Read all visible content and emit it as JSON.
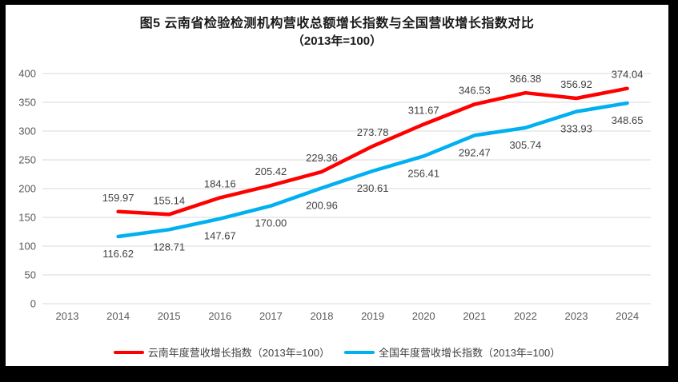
{
  "title": {
    "line1": "图5  云南省检验检测机构营收总额增长指数与全国营收增长指数对比",
    "line2": "（2013年=100）"
  },
  "colors": {
    "frame": "#000000",
    "canvas": "#ffffff",
    "grid": "#d9d9d9",
    "axis_text": "#595959",
    "label_text": "#404040",
    "yunnan_red": "#ff0000",
    "national_blue": "#00b0f0"
  },
  "chart_data": {
    "type": "line",
    "title": "图5  云南省检验检测机构营收总额增长指数与全国营收增长指数对比",
    "subtitle": "（2013年=100）",
    "categories": [
      "2013",
      "2014",
      "2015",
      "2016",
      "2017",
      "2018",
      "2019",
      "2020",
      "2021",
      "2022",
      "2023",
      "2024"
    ],
    "xlabel": "",
    "ylabel": "",
    "ylim": [
      0,
      400
    ],
    "ytick_step": 50,
    "grid": true,
    "legend_position": "bottom",
    "series": [
      {
        "name": "云南年度营收增长指数（2013年=100）",
        "color": "#ff0000",
        "label_position": "above",
        "x": [
          "2014",
          "2015",
          "2016",
          "2017",
          "2018",
          "2019",
          "2020",
          "2021",
          "2022",
          "2023",
          "2024"
        ],
        "values": [
          159.97,
          155.14,
          184.16,
          205.42,
          229.36,
          273.78,
          311.67,
          346.53,
          366.38,
          356.92,
          374.04
        ]
      },
      {
        "name": "全国年度营收增长指数（2013年=100）",
        "color": "#00b0f0",
        "label_position": "below",
        "x": [
          "2014",
          "2015",
          "2016",
          "2017",
          "2018",
          "2019",
          "2020",
          "2021",
          "2022",
          "2023",
          "2024"
        ],
        "values": [
          116.62,
          128.71,
          147.67,
          170.0,
          200.96,
          230.61,
          256.41,
          292.47,
          305.74,
          333.93,
          348.65
        ]
      }
    ]
  }
}
